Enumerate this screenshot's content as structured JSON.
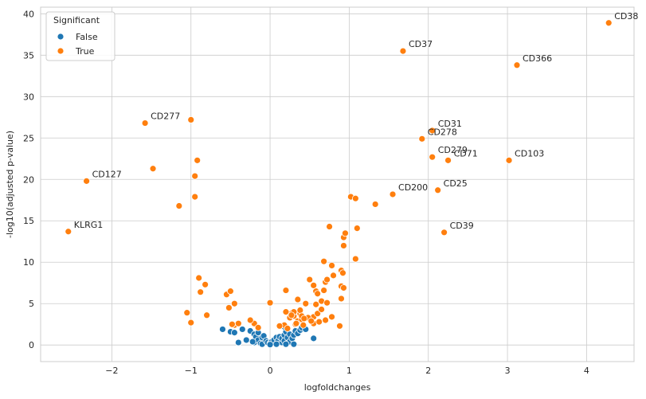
{
  "chart_data": {
    "type": "scatter",
    "xlabel": "logfoldchanges",
    "ylabel": "-log10(adjusted p-value)",
    "xlim": [
      -2.9,
      4.6
    ],
    "ylim": [
      -2,
      40.8
    ],
    "xticks": [
      -2,
      -1,
      0,
      1,
      2,
      3,
      4
    ],
    "yticks": [
      0,
      5,
      10,
      15,
      20,
      25,
      30,
      35,
      40
    ],
    "grid": true,
    "legend": {
      "title": "Significant",
      "placement": "top-left",
      "entries": [
        {
          "label": "False",
          "color": "#1f77b4"
        },
        {
          "label": "True",
          "color": "#ff7f0e"
        }
      ]
    },
    "series": [
      {
        "name": "False",
        "color": "#1f77b4",
        "points": [
          [
            -0.6,
            1.9
          ],
          [
            -0.5,
            1.6
          ],
          [
            -0.45,
            1.5
          ],
          [
            -0.4,
            0.3
          ],
          [
            -0.35,
            1.9
          ],
          [
            -0.3,
            0.6
          ],
          [
            -0.25,
            1.7
          ],
          [
            -0.2,
            1.3
          ],
          [
            -0.2,
            0.3
          ],
          [
            -0.18,
            1.0
          ],
          [
            -0.15,
            0.6
          ],
          [
            -0.15,
            1.5
          ],
          [
            -0.12,
            0.2
          ],
          [
            -0.1,
            0.9
          ],
          [
            -0.1,
            0.1
          ],
          [
            -0.08,
            1.1
          ],
          [
            -0.05,
            0.5
          ],
          [
            -0.03,
            0.3
          ],
          [
            0.0,
            0.2
          ],
          [
            0.02,
            0.4
          ],
          [
            0.05,
            0.3
          ],
          [
            0.05,
            0.6
          ],
          [
            0.08,
            0.9
          ],
          [
            0.1,
            0.2
          ],
          [
            0.1,
            0.5
          ],
          [
            0.12,
            1.0
          ],
          [
            0.15,
            0.3
          ],
          [
            0.15,
            0.8
          ],
          [
            0.18,
            1.2
          ],
          [
            0.18,
            0.5
          ],
          [
            0.2,
            1.6
          ],
          [
            0.22,
            0.9
          ],
          [
            0.25,
            1.3
          ],
          [
            0.25,
            0.4
          ],
          [
            0.28,
            0.8
          ],
          [
            0.3,
            1.2
          ],
          [
            0.3,
            0.1
          ],
          [
            0.32,
            1.7
          ],
          [
            0.35,
            1.4
          ],
          [
            0.38,
            1.8
          ],
          [
            0.4,
            2.1
          ],
          [
            0.45,
            1.9
          ],
          [
            0.55,
            0.8
          ],
          [
            0.2,
            0.1
          ],
          [
            0.08,
            0.1
          ],
          [
            0.0,
            0.05
          ],
          [
            0.22,
            2.0
          ],
          [
            0.18,
            2.2
          ],
          [
            -0.22,
            0.4
          ]
        ]
      },
      {
        "name": "True",
        "color": "#ff7f0e",
        "points": [
          [
            -2.55,
            13.7
          ],
          [
            -2.32,
            19.8
          ],
          [
            -1.58,
            26.8
          ],
          [
            -1.0,
            27.2
          ],
          [
            -1.48,
            21.3
          ],
          [
            -0.92,
            22.3
          ],
          [
            -0.95,
            20.4
          ],
          [
            -0.95,
            17.9
          ],
          [
            -1.15,
            16.8
          ],
          [
            -0.9,
            8.1
          ],
          [
            -0.82,
            7.3
          ],
          [
            -0.88,
            6.4
          ],
          [
            -1.05,
            3.9
          ],
          [
            -1.0,
            2.7
          ],
          [
            -0.8,
            3.6
          ],
          [
            -0.55,
            6.1
          ],
          [
            -0.5,
            6.5
          ],
          [
            -0.45,
            5.0
          ],
          [
            -0.52,
            4.5
          ],
          [
            -0.45,
            2.4
          ],
          [
            -0.4,
            2.6
          ],
          [
            -0.48,
            2.5
          ],
          [
            -0.2,
            2.6
          ],
          [
            -0.25,
            3.0
          ],
          [
            -0.15,
            2.1
          ],
          [
            0.0,
            5.1
          ],
          [
            0.2,
            6.6
          ],
          [
            0.2,
            4.0
          ],
          [
            0.25,
            3.3
          ],
          [
            0.28,
            3.9
          ],
          [
            0.3,
            3.5
          ],
          [
            0.32,
            2.5
          ],
          [
            0.35,
            2.9
          ],
          [
            0.38,
            3.8
          ],
          [
            0.4,
            3.1
          ],
          [
            0.42,
            2.4
          ],
          [
            0.45,
            5.0
          ],
          [
            0.35,
            5.5
          ],
          [
            0.38,
            4.2
          ],
          [
            0.3,
            4.0
          ],
          [
            0.5,
            7.9
          ],
          [
            0.55,
            3.4
          ],
          [
            0.58,
            6.5
          ],
          [
            0.55,
            7.2
          ],
          [
            0.58,
            4.9
          ],
          [
            0.6,
            3.8
          ],
          [
            0.55,
            2.6
          ],
          [
            0.6,
            6.2
          ],
          [
            0.65,
            5.3
          ],
          [
            0.68,
            10.1
          ],
          [
            0.7,
            7.6
          ],
          [
            0.7,
            3.0
          ],
          [
            0.75,
            14.3
          ],
          [
            0.78,
            9.6
          ],
          [
            0.8,
            8.4
          ],
          [
            0.78,
            3.4
          ],
          [
            0.9,
            9.0
          ],
          [
            0.92,
            8.7
          ],
          [
            0.9,
            7.1
          ],
          [
            0.93,
            6.9
          ],
          [
            0.9,
            5.6
          ],
          [
            0.88,
            2.3
          ],
          [
            0.93,
            12.0
          ],
          [
            0.93,
            13.0
          ],
          [
            0.95,
            13.5
          ],
          [
            1.02,
            17.9
          ],
          [
            1.08,
            17.7
          ],
          [
            1.1,
            14.1
          ],
          [
            1.08,
            10.4
          ],
          [
            1.33,
            17.0
          ],
          [
            1.55,
            18.2
          ],
          [
            1.68,
            35.5
          ],
          [
            1.92,
            24.9
          ],
          [
            2.05,
            25.9
          ],
          [
            2.05,
            22.7
          ],
          [
            2.12,
            18.7
          ],
          [
            2.2,
            13.6
          ],
          [
            2.25,
            22.3
          ],
          [
            3.02,
            22.3
          ],
          [
            3.12,
            33.8
          ],
          [
            4.28,
            38.9
          ],
          [
            0.68,
            6.6
          ],
          [
            0.72,
            7.9
          ],
          [
            0.48,
            3.3
          ],
          [
            0.52,
            2.9
          ],
          [
            0.62,
            2.8
          ],
          [
            0.65,
            4.3
          ],
          [
            0.72,
            5.1
          ],
          [
            0.4,
            3.5
          ],
          [
            0.43,
            3.2
          ],
          [
            0.27,
            3.6
          ],
          [
            0.18,
            2.4
          ],
          [
            0.22,
            2.0
          ],
          [
            0.33,
            2.6
          ],
          [
            0.12,
            2.3
          ]
        ]
      }
    ],
    "annotations": [
      {
        "text": "KLRG1",
        "x": -2.55,
        "y": 13.7
      },
      {
        "text": "CD127",
        "x": -2.32,
        "y": 19.8
      },
      {
        "text": "CD277",
        "x": -1.58,
        "y": 26.8
      },
      {
        "text": "CD37",
        "x": 1.68,
        "y": 35.5
      },
      {
        "text": "CD31",
        "x": 2.05,
        "y": 25.9
      },
      {
        "text": "CD278",
        "x": 1.92,
        "y": 24.9
      },
      {
        "text": "CD279",
        "x": 2.05,
        "y": 22.7
      },
      {
        "text": "CD71",
        "x": 2.25,
        "y": 22.3
      },
      {
        "text": "CD200",
        "x": 1.55,
        "y": 18.2
      },
      {
        "text": "CD25",
        "x": 2.12,
        "y": 18.7
      },
      {
        "text": "CD39",
        "x": 2.2,
        "y": 13.6
      },
      {
        "text": "CD103",
        "x": 3.02,
        "y": 22.3
      },
      {
        "text": "CD366",
        "x": 3.12,
        "y": 33.8
      },
      {
        "text": "CD38",
        "x": 4.28,
        "y": 38.9
      }
    ]
  }
}
